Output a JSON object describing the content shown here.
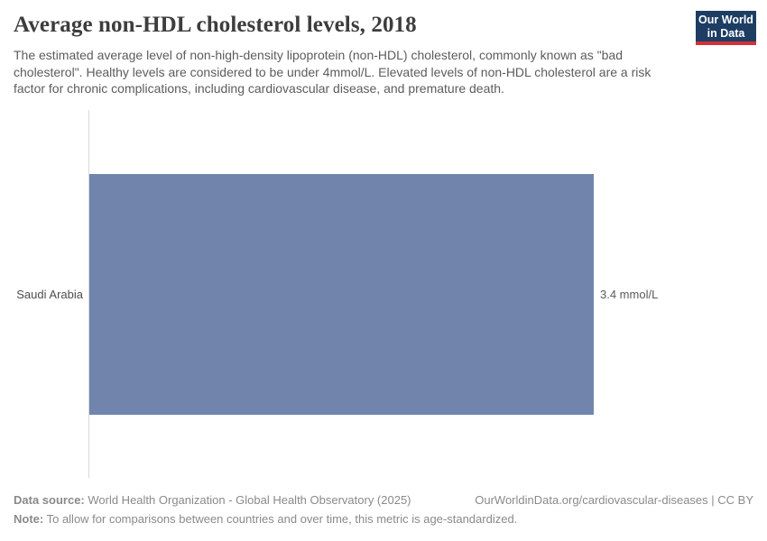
{
  "header": {
    "title": "Average non-HDL cholesterol levels, 2018",
    "subtitle": "The estimated average level of non-high-density lipoprotein (non-HDL) cholesterol, commonly known as \"bad cholesterol\". Healthy levels are considered to be under 4mmol/L. Elevated levels of non-HDL cholesterol are a risk factor for chronic complications, including cardiovascular disease, and premature death."
  },
  "logo": {
    "line1": "Our World",
    "line2": "in Data",
    "bg_color": "#1d3d63",
    "stripe_color": "#d13239"
  },
  "chart_data": {
    "type": "bar",
    "orientation": "horizontal",
    "title": "Average non-HDL cholesterol levels, 2018",
    "categories": [
      "Saudi Arabia"
    ],
    "values": [
      3.4
    ],
    "unit": "mmol/L",
    "value_labels": [
      "3.4 mmol/L"
    ],
    "bar_color": "#7185ac",
    "axis_max": 3.4,
    "grid": false,
    "legend": false,
    "xlabel": "",
    "ylabel": ""
  },
  "footer": {
    "data_source_label": "Data source:",
    "data_source_text": " World Health Organization - Global Health Observatory (2025)",
    "link_text": "OurWorldinData.org/cardiovascular-diseases | CC BY",
    "note_label": "Note:",
    "note_text": " To allow for comparisons between countries and over time, this metric is age-standardized."
  }
}
